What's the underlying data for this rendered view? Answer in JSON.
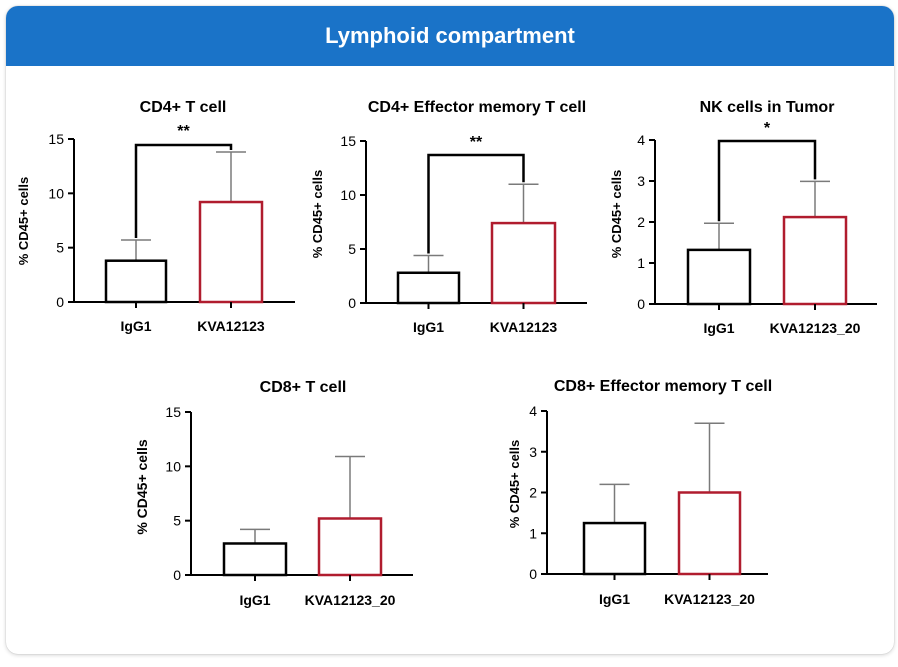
{
  "header": {
    "title": "Lymphoid compartment"
  },
  "colors": {
    "header_bg": "#1a73c8",
    "control": "#000000",
    "treated": "#b01c2e",
    "error": "#7a7a7a",
    "axis": "#000000"
  },
  "chart_data": [
    {
      "type": "bar",
      "title": "CD4+ T cell",
      "ylabel": "% CD45+ cells",
      "xlabel": "",
      "categories": [
        "IgG1",
        "KVA12123"
      ],
      "values": [
        3.8,
        9.2
      ],
      "errors": [
        1.9,
        4.6
      ],
      "ylim": [
        0,
        15
      ],
      "yticks": [
        "0",
        "5",
        "10",
        "15"
      ],
      "significance": "**"
    },
    {
      "type": "bar",
      "title": "CD4+ Effector memory T cell",
      "ylabel": "% CD45+ cells",
      "xlabel": "",
      "categories": [
        "IgG1",
        "KVA12123"
      ],
      "values": [
        2.8,
        7.4
      ],
      "errors": [
        1.6,
        3.6
      ],
      "ylim": [
        0,
        15
      ],
      "yticks": [
        "0",
        "5",
        "10",
        "15"
      ],
      "significance": "**"
    },
    {
      "type": "bar",
      "title": "NK cells in Tumor",
      "ylabel": "% CD45+ cells",
      "xlabel": "",
      "categories": [
        "IgG1",
        "KVA12123_20"
      ],
      "values": [
        1.32,
        2.12
      ],
      "errors": [
        0.65,
        0.87
      ],
      "ylim": [
        0,
        4
      ],
      "yticks": [
        "0",
        "1",
        "2",
        "3",
        "4"
      ],
      "significance": "*"
    },
    {
      "type": "bar",
      "title": "CD8+ T cell",
      "ylabel": "% CD45+ cells",
      "xlabel": "",
      "categories": [
        "IgG1",
        "KVA12123_20"
      ],
      "values": [
        2.9,
        5.2
      ],
      "errors": [
        1.3,
        5.7
      ],
      "ylim": [
        0,
        15
      ],
      "yticks": [
        "0",
        "5",
        "10",
        "15"
      ],
      "significance": ""
    },
    {
      "type": "bar",
      "title": "CD8+ Effector memory T cell",
      "ylabel": "% CD45+ cells",
      "xlabel": "",
      "categories": [
        "IgG1",
        "KVA12123_20"
      ],
      "values": [
        1.25,
        2.0
      ],
      "errors": [
        0.95,
        1.7
      ],
      "ylim": [
        0,
        4
      ],
      "yticks": [
        "0",
        "1",
        "2",
        "3",
        "4"
      ],
      "significance": ""
    }
  ]
}
